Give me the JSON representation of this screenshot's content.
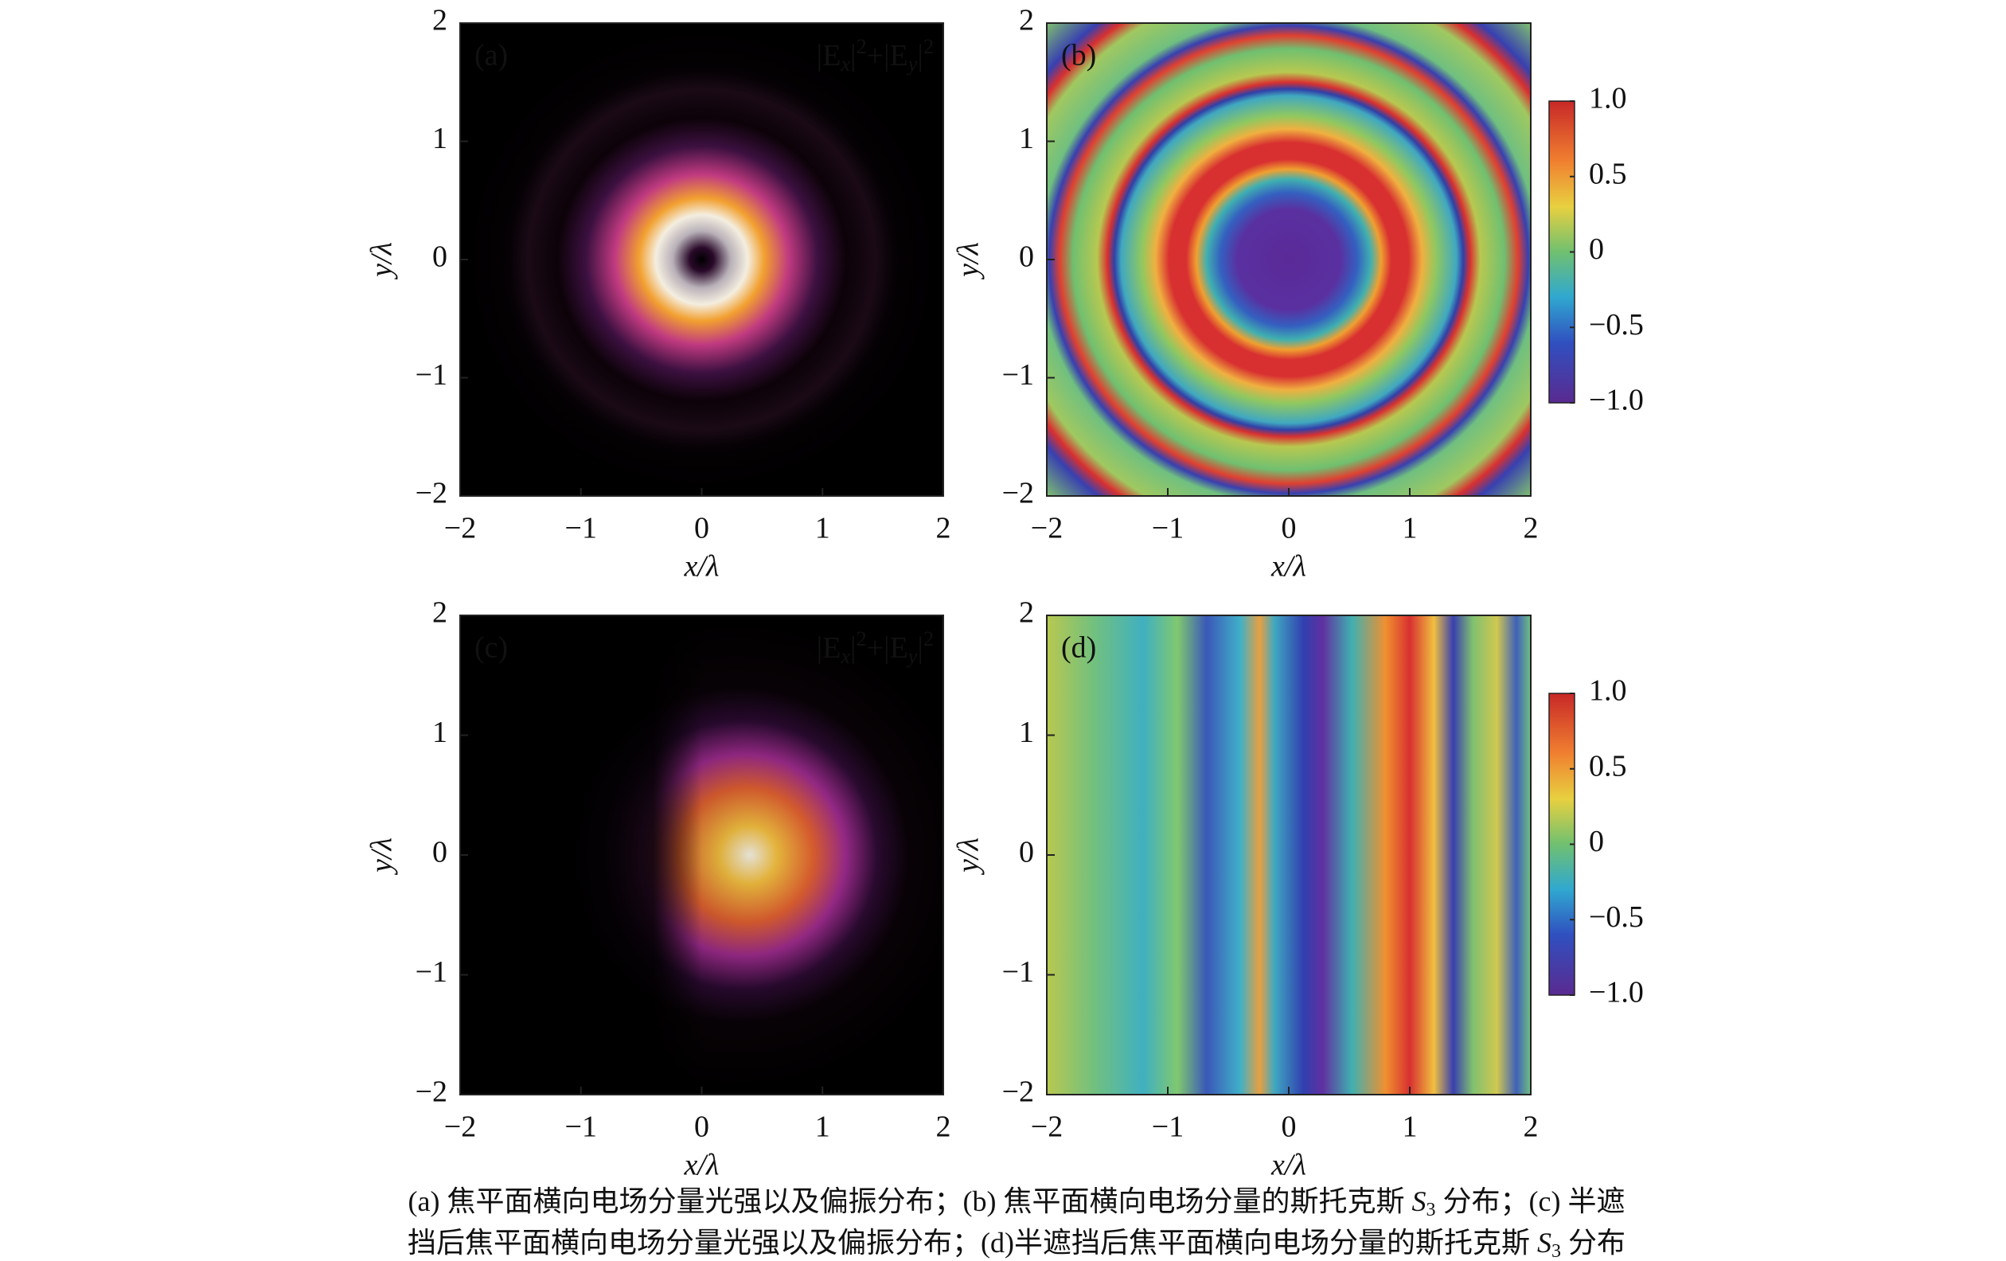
{
  "chart_data": [
    {
      "type": "heatmap",
      "label": "(a)",
      "annotation": [
        "|E",
        "x",
        "|",
        "2",
        "+|E",
        "y",
        "|",
        "2"
      ],
      "xlabel": "x/λ",
      "ylabel": "y/λ",
      "xlim": [
        -2,
        2
      ],
      "ylim": [
        -2,
        2
      ],
      "xticks": [
        {
          "value": -2,
          "label": "−2"
        },
        {
          "value": -1,
          "label": "−1"
        },
        0,
        1,
        2
      ],
      "yticks": [
        {
          "value": -2,
          "label": "−2"
        },
        {
          "value": -1,
          "label": "−1"
        },
        0,
        1,
        2
      ]
    },
    {
      "type": "heatmap",
      "label": "(b)",
      "xlabel": "x/λ",
      "ylabel": "y/λ",
      "xlim": [
        -2,
        2
      ],
      "ylim": [
        -2,
        2
      ],
      "xticks": [
        {
          "value": -2,
          "label": "−2"
        },
        {
          "value": -1,
          "label": "−1"
        },
        0,
        1,
        2
      ],
      "yticks": [
        {
          "value": -2,
          "label": "−2"
        },
        {
          "value": -1,
          "label": "−1"
        },
        0,
        1,
        2
      ],
      "clim": [
        -1,
        1
      ],
      "cticks": [
        {
          "value": 1,
          "label": "1.0"
        },
        0.5,
        0,
        {
          "value": -0.5,
          "label": "−0.5"
        },
        {
          "value": -1,
          "label": "−1.0"
        }
      ]
    },
    {
      "type": "heatmap",
      "label": "(c)",
      "annotation": [
        "|E",
        "x",
        "|",
        "2",
        "+|E",
        "y",
        "|",
        "2"
      ],
      "xlabel": "x/λ",
      "ylabel": "y/λ",
      "xlim": [
        -2,
        2
      ],
      "ylim": [
        -2,
        2
      ],
      "xticks": [
        {
          "value": -2,
          "label": "−2"
        },
        {
          "value": -1,
          "label": "−1"
        },
        0,
        1,
        2
      ],
      "yticks": [
        {
          "value": -2,
          "label": "−2"
        },
        {
          "value": -1,
          "label": "−1"
        },
        0,
        1,
        2
      ]
    },
    {
      "type": "heatmap",
      "label": "(d)",
      "xlabel": "x/λ",
      "ylabel": "y/λ",
      "xlim": [
        -2,
        2
      ],
      "ylim": [
        -2,
        2
      ],
      "xticks": [
        {
          "value": -2,
          "label": "−2"
        },
        {
          "value": -1,
          "label": "−1"
        },
        0,
        1,
        2
      ],
      "yticks": [
        {
          "value": -2,
          "label": "−2"
        },
        {
          "value": -1,
          "label": "−1"
        },
        0,
        1,
        2
      ],
      "clim": [
        -1,
        1
      ],
      "cticks": [
        {
          "value": 1,
          "label": "1.0"
        },
        0.5,
        0,
        {
          "value": -0.5,
          "label": "−0.5"
        },
        {
          "value": -1,
          "label": "−1.0"
        }
      ]
    }
  ],
  "caption": [
    [
      "(a) 焦平面横向电场分量光强以及偏振分布；(b) 焦平面横向电场分量的斯托克斯 ",
      "S",
      "3",
      " 分布；(c) 半遮"
    ],
    [
      "挡后焦平面横向电场分量光强以及偏振分布；(d)半遮挡后焦平面横向电场分量的斯托克斯 ",
      "S",
      "3",
      " 分布"
    ]
  ]
}
